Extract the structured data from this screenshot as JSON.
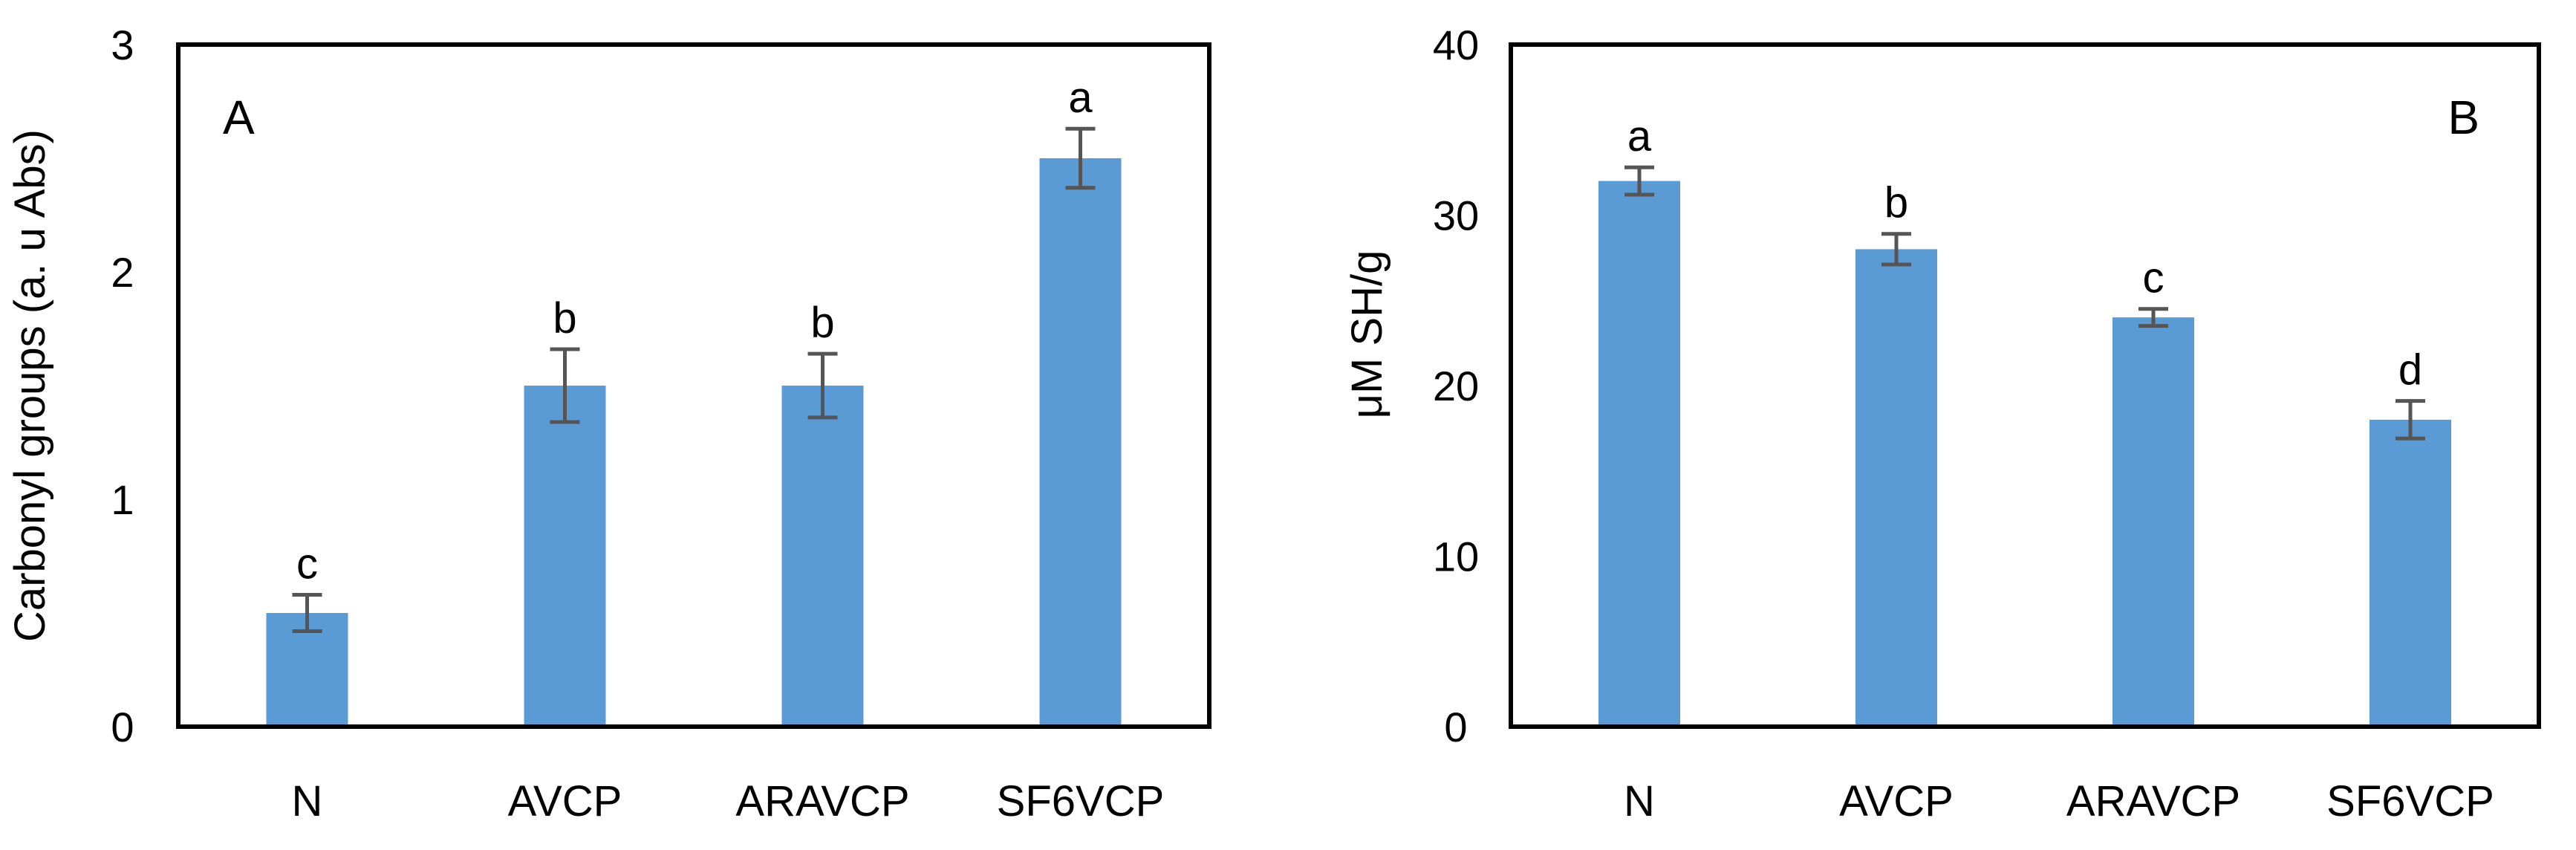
{
  "chart_data": [
    {
      "type": "bar",
      "panel_label": "A",
      "categories": [
        "N",
        "AVCP",
        "ARAVCP",
        "SF6VCP"
      ],
      "values": [
        0.5,
        1.5,
        1.5,
        2.5
      ],
      "errors": [
        0.08,
        0.16,
        0.14,
        0.13
      ],
      "significance": [
        "c",
        "b",
        "b",
        "a"
      ],
      "ylabel": "Carbonyl groups (a. u Abs)",
      "xlabel": "",
      "ylim": [
        0,
        3
      ],
      "yticks": [
        0,
        1,
        2,
        3
      ],
      "grid": false,
      "bar_color": "#5B9BD5",
      "error_color": "#555555"
    },
    {
      "type": "bar",
      "panel_label": "B",
      "categories": [
        "N",
        "AVCP",
        "ARAVCP",
        "SF6VCP"
      ],
      "values": [
        32,
        28,
        24,
        18
      ],
      "errors": [
        0.8,
        0.9,
        0.5,
        1.1
      ],
      "significance": [
        "a",
        "b",
        "c",
        "d"
      ],
      "ylabel": "μM SH/g",
      "xlabel": "",
      "ylim": [
        0,
        40
      ],
      "yticks": [
        0,
        10,
        20,
        30,
        40
      ],
      "grid": false,
      "bar_color": "#5B9BD5",
      "error_color": "#555555"
    }
  ]
}
